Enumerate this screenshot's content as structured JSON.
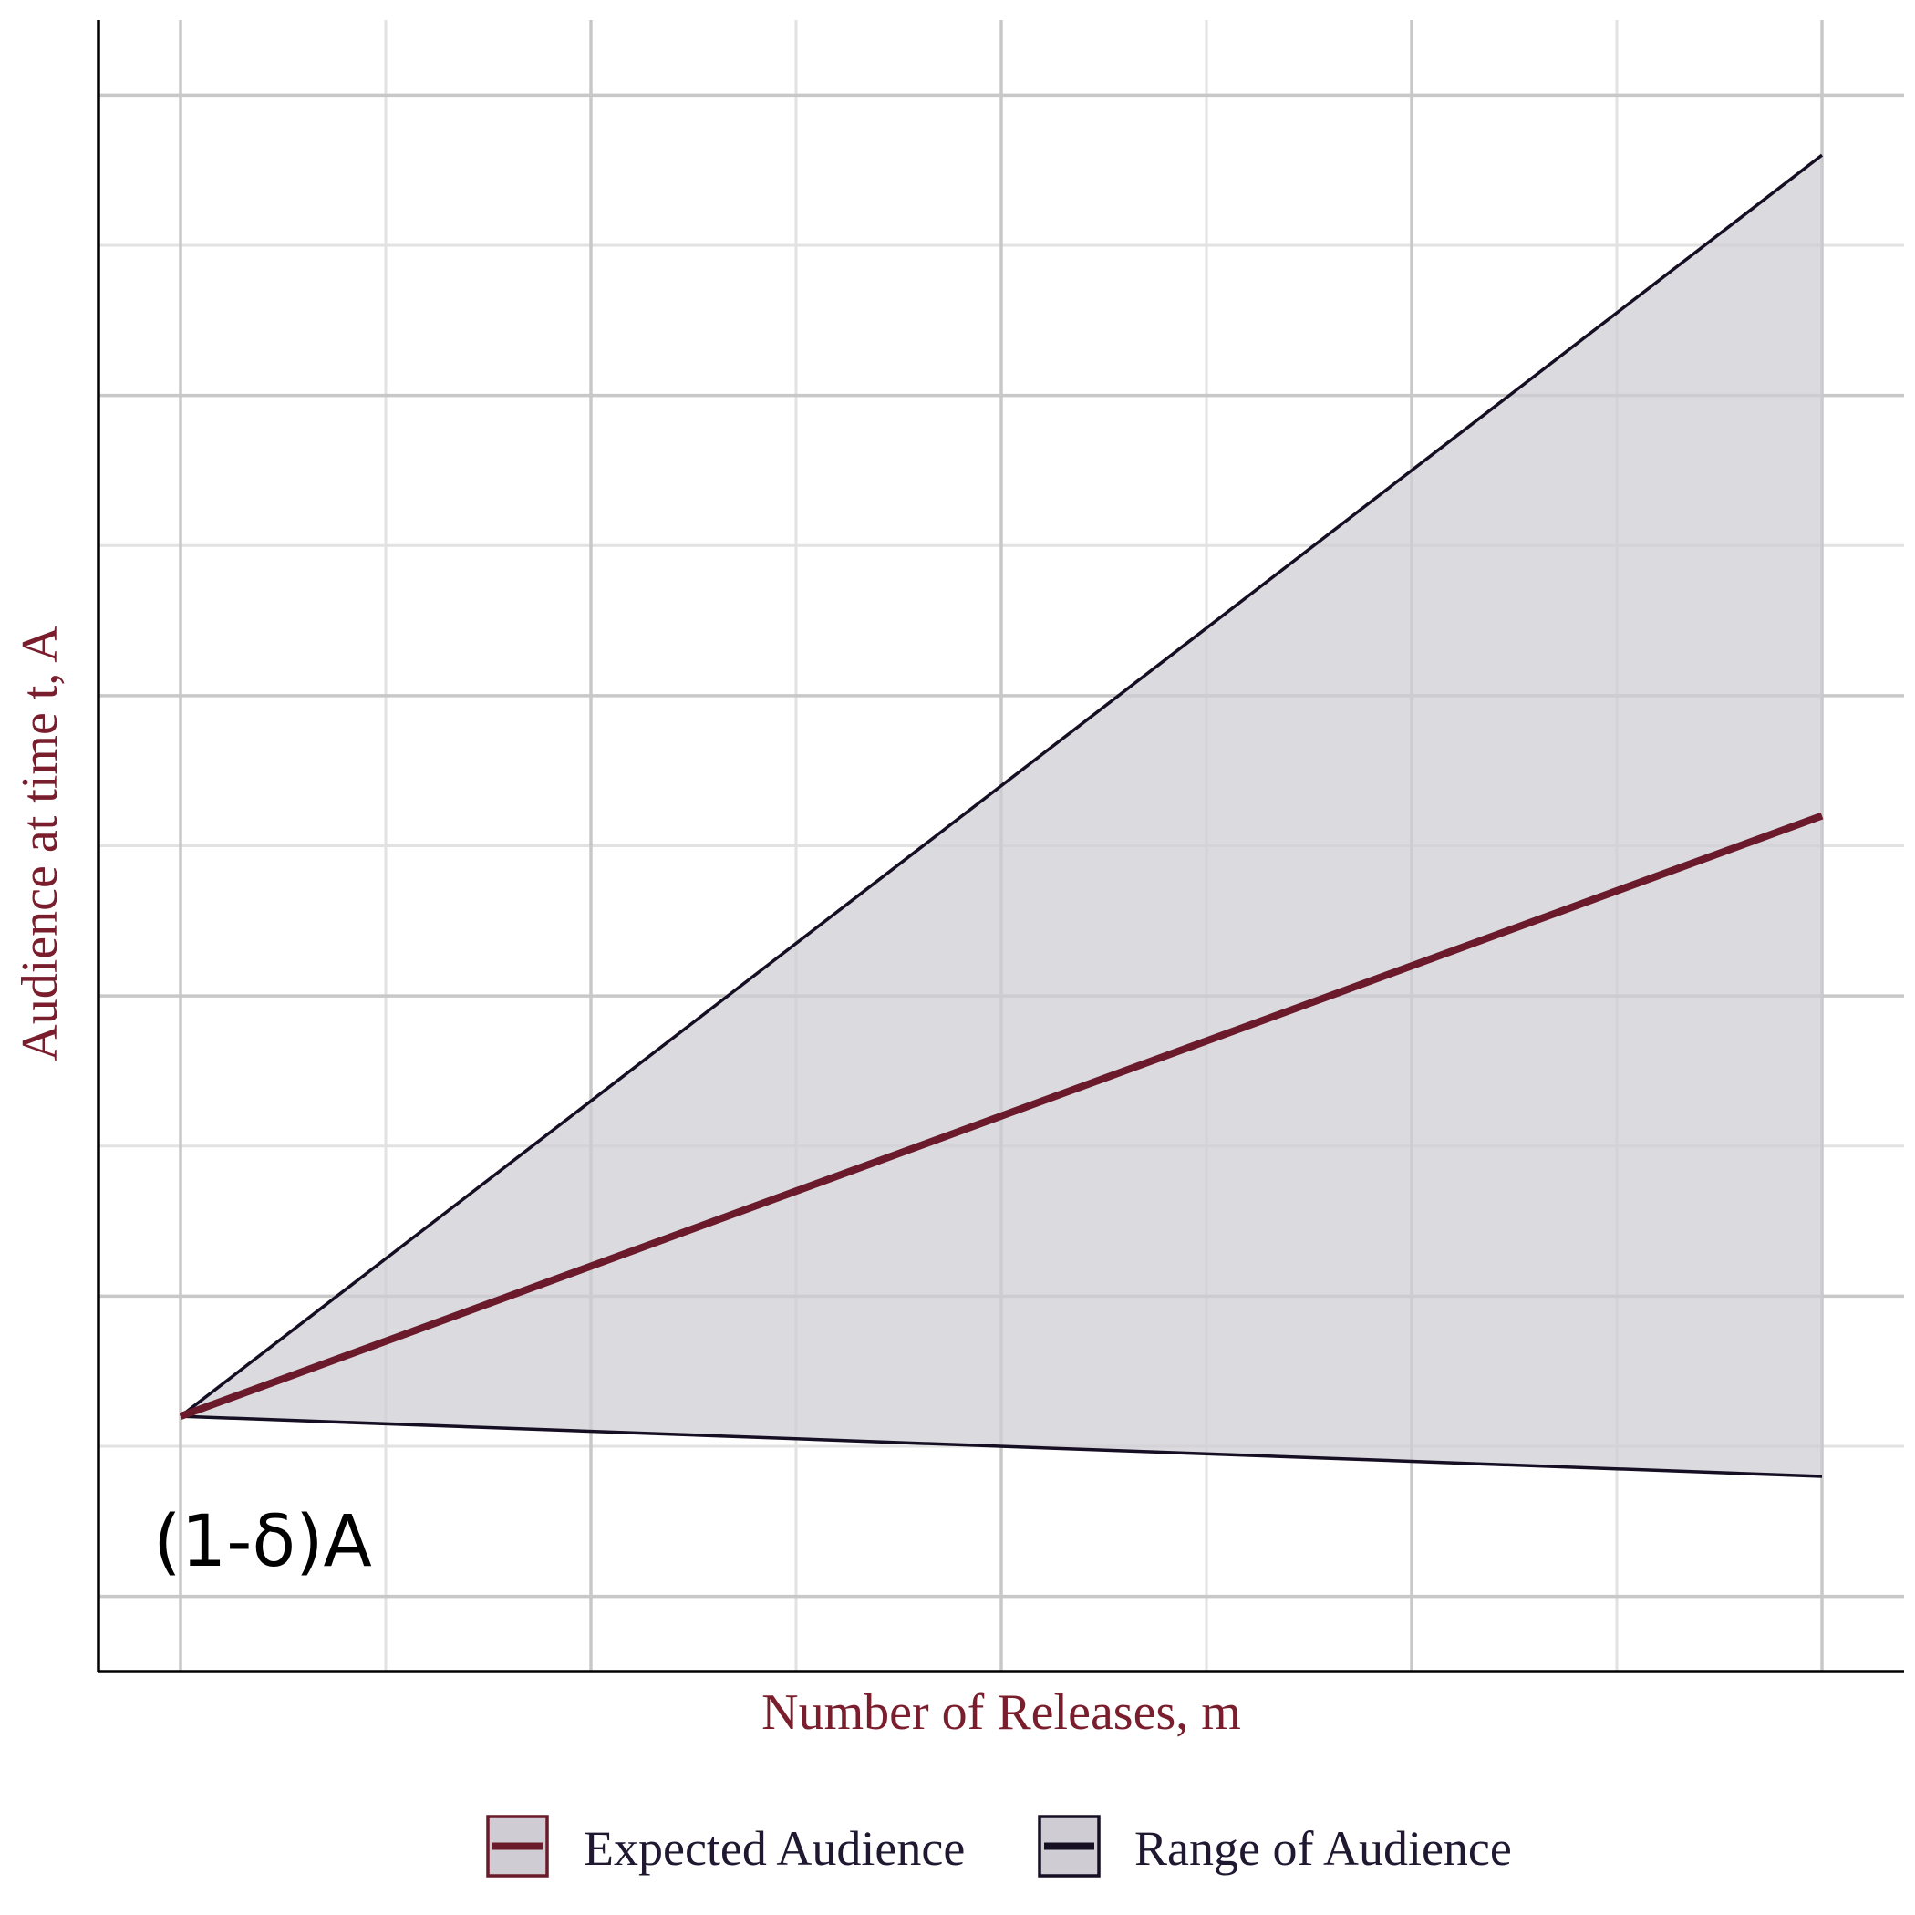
{
  "chart_data": {
    "type": "line",
    "title": "",
    "xlabel": "Number of Releases, m",
    "ylabel": "Audience at time t, A",
    "x_range": [
      -0.4,
      8.4
    ],
    "y_range": [
      -0.5,
      10.5
    ],
    "x_ticks_major": [
      0,
      2,
      4,
      6,
      8
    ],
    "x_ticks_minor": [
      1,
      3,
      5,
      7
    ],
    "y_ticks_major": [
      0,
      2,
      4,
      6,
      8,
      10
    ],
    "y_ticks_minor": [
      1,
      3,
      5,
      7,
      9
    ],
    "tick_labels_shown": false,
    "grid": true,
    "legend_position": "bottom",
    "series": [
      {
        "name": "Expected Audience",
        "x": [
          0,
          8
        ],
        "y": [
          1.2,
          5.2
        ]
      },
      {
        "name": "Range of Audience",
        "kind": "ribbon",
        "x": [
          0,
          8
        ],
        "ymin": [
          1.2,
          0.8
        ],
        "ymax": [
          1.2,
          9.6
        ]
      }
    ],
    "annotations": [
      {
        "text": "(1-δ)A",
        "x": 0.4,
        "y": 0.35
      }
    ],
    "colors": {
      "expected_line": "#6a1a2a",
      "range_line": "#160f24",
      "ribbon_fill": "#cfcdd3",
      "axis_title": "#7a1e2d",
      "legend_text": "#1f1830",
      "grid_major": "#c8c8c8",
      "grid_minor": "#e2e2e2",
      "axis_line": "#000000",
      "annotation_text": "#000000"
    }
  }
}
